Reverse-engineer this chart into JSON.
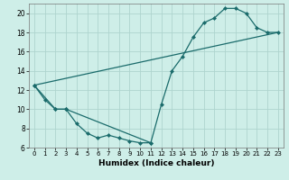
{
  "xlabel": "Humidex (Indice chaleur)",
  "bg_color": "#ceeee8",
  "grid_color": "#aed4ce",
  "line_color": "#1a6b6b",
  "xlim": [
    -0.5,
    23.5
  ],
  "ylim": [
    6,
    21
  ],
  "yticks": [
    6,
    8,
    10,
    12,
    14,
    16,
    18,
    20
  ],
  "xticks": [
    0,
    1,
    2,
    3,
    4,
    5,
    6,
    7,
    8,
    9,
    10,
    11,
    12,
    13,
    14,
    15,
    16,
    17,
    18,
    19,
    20,
    21,
    22,
    23
  ],
  "line1_x": [
    0,
    1,
    2,
    3,
    4,
    5,
    6,
    7,
    8,
    9,
    10,
    11
  ],
  "line1_y": [
    12.5,
    11.0,
    10.0,
    10.0,
    8.5,
    7.5,
    7.0,
    7.3,
    7.0,
    6.7,
    6.5,
    6.5
  ],
  "line2_x": [
    0,
    2,
    3,
    11,
    12,
    13,
    14,
    15,
    16,
    17,
    18,
    19,
    20,
    21,
    22,
    23
  ],
  "line2_y": [
    12.5,
    10.0,
    10.0,
    6.5,
    10.5,
    14.0,
    15.5,
    17.5,
    19.0,
    19.5,
    20.5,
    20.5,
    20.0,
    18.5,
    18.0,
    18.0
  ],
  "line3_x": [
    0,
    23
  ],
  "line3_y": [
    12.5,
    18.0
  ]
}
